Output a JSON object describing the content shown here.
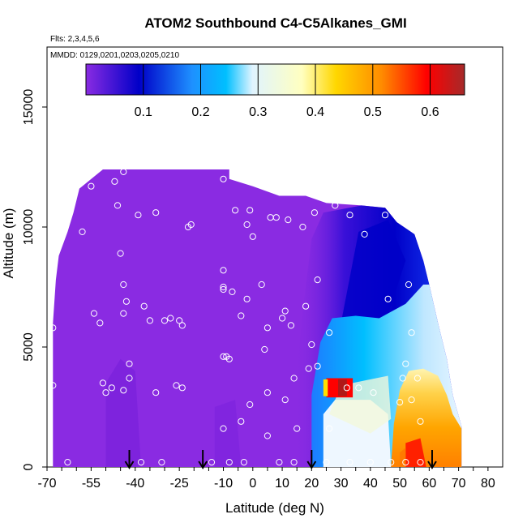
{
  "chart_data": {
    "type": "heatmap",
    "title": "ATOM2 Southbound C4-C5Alkanes_GMI",
    "annotations": [
      "Flts: 2,3,4,5,6",
      "MMDD: 0129,0201,0203,0205,0210"
    ],
    "xlabel": "Latitude (deg N)",
    "ylabel": "Altitude (m)",
    "xlim": [
      -70,
      85
    ],
    "ylim": [
      0,
      17500
    ],
    "x_ticks": [
      "-70",
      "-55",
      "-40",
      "-25",
      "-10",
      "0",
      "10",
      "20",
      "30",
      "40",
      "50",
      "60",
      "70",
      "80"
    ],
    "x_tick_values": [
      -70,
      -55,
      -40,
      -25,
      -10,
      0,
      10,
      20,
      30,
      40,
      50,
      60,
      70,
      80
    ],
    "y_ticks": [
      "0",
      "5000",
      "10000",
      "15000"
    ],
    "y_tick_values": [
      0,
      5000,
      10000,
      15000
    ],
    "colorbar": {
      "ticks": [
        "0.1",
        "0.2",
        "0.3",
        "0.4",
        "0.5",
        "0.6"
      ],
      "tick_values": [
        0.1,
        0.2,
        0.3,
        0.4,
        0.5,
        0.6
      ],
      "range": [
        0.0,
        0.66
      ],
      "colors": [
        "#8a2be2",
        "#0000c8",
        "#1e90ff",
        "#00bfff",
        "#e0f4ff",
        "#ffffc0",
        "#ffd700",
        "#ff8c00",
        "#ff0000",
        "#a52a2a"
      ]
    },
    "grid": false,
    "value_regions": [
      {
        "name": "background",
        "value": 0.02
      },
      {
        "name": "band-20N-45N-mid",
        "value": 0.25
      },
      {
        "name": "band-40N-60N-low",
        "value": 0.45
      },
      {
        "name": "hotspot-28N-3km",
        "value": 0.62
      },
      {
        "name": "hotspot-55N-surface",
        "value": 0.6
      }
    ],
    "arrow_latitudes": [
      -42,
      -17,
      20,
      61
    ],
    "observation_points": [
      {
        "x": -68,
        "y": 5800
      },
      {
        "x": -68,
        "y": 3400
      },
      {
        "x": -63,
        "y": 200
      },
      {
        "x": -58,
        "y": 9800
      },
      {
        "x": -55,
        "y": 11700
      },
      {
        "x": -54,
        "y": 6400
      },
      {
        "x": -52,
        "y": 6000
      },
      {
        "x": -51,
        "y": 3500
      },
      {
        "x": -50,
        "y": 3100
      },
      {
        "x": -48,
        "y": 3300
      },
      {
        "x": -47,
        "y": 11900
      },
      {
        "x": -46,
        "y": 10900
      },
      {
        "x": -45,
        "y": 8900
      },
      {
        "x": -44,
        "y": 12300
      },
      {
        "x": -44,
        "y": 7600
      },
      {
        "x": -44,
        "y": 6400
      },
      {
        "x": -43,
        "y": 6900
      },
      {
        "x": -42,
        "y": 4300
      },
      {
        "x": -42,
        "y": 3700
      },
      {
        "x": -44,
        "y": 3200
      },
      {
        "x": -39,
        "y": 10500
      },
      {
        "x": -37,
        "y": 6700
      },
      {
        "x": -35,
        "y": 6100
      },
      {
        "x": -33,
        "y": 3100
      },
      {
        "x": -38,
        "y": 200
      },
      {
        "x": -33,
        "y": 10600
      },
      {
        "x": -30,
        "y": 6100
      },
      {
        "x": -28,
        "y": 6200
      },
      {
        "x": -26,
        "y": 3400
      },
      {
        "x": -25,
        "y": 6100
      },
      {
        "x": -24,
        "y": 5900
      },
      {
        "x": -24,
        "y": 3300
      },
      {
        "x": -22,
        "y": 10000
      },
      {
        "x": -21,
        "y": 10100
      },
      {
        "x": -31,
        "y": 200
      },
      {
        "x": -14,
        "y": 200
      },
      {
        "x": -10,
        "y": 12000
      },
      {
        "x": -10,
        "y": 8200
      },
      {
        "x": -10,
        "y": 7500
      },
      {
        "x": -10,
        "y": 7400
      },
      {
        "x": -10,
        "y": 4600
      },
      {
        "x": -9,
        "y": 4600
      },
      {
        "x": -8,
        "y": 4500
      },
      {
        "x": -7,
        "y": 7300
      },
      {
        "x": -6,
        "y": 10700
      },
      {
        "x": -4,
        "y": 6300
      },
      {
        "x": -4,
        "y": 1900
      },
      {
        "x": -2,
        "y": 10100
      },
      {
        "x": -2,
        "y": 7000
      },
      {
        "x": -1,
        "y": 2600
      },
      {
        "x": -1,
        "y": 10700
      },
      {
        "x": 0,
        "y": 9600
      },
      {
        "x": -10,
        "y": 1600
      },
      {
        "x": -8,
        "y": 200
      },
      {
        "x": -3,
        "y": 200
      },
      {
        "x": 3,
        "y": 7600
      },
      {
        "x": 4,
        "y": 4900
      },
      {
        "x": 5,
        "y": 5800
      },
      {
        "x": 5,
        "y": 3100
      },
      {
        "x": 5,
        "y": 1300
      },
      {
        "x": 6,
        "y": 10400
      },
      {
        "x": 8,
        "y": 10400
      },
      {
        "x": 10,
        "y": 6200
      },
      {
        "x": 11,
        "y": 6500
      },
      {
        "x": 11,
        "y": 2800
      },
      {
        "x": 12,
        "y": 10300
      },
      {
        "x": 13,
        "y": 5900
      },
      {
        "x": 14,
        "y": 3700
      },
      {
        "x": 15,
        "y": 1600
      },
      {
        "x": 9,
        "y": 200
      },
      {
        "x": 14,
        "y": 200
      },
      {
        "x": 17,
        "y": 10000
      },
      {
        "x": 18,
        "y": 6700
      },
      {
        "x": 19,
        "y": 4100
      },
      {
        "x": 20,
        "y": 5100
      },
      {
        "x": 21,
        "y": 10600
      },
      {
        "x": 22,
        "y": 7800
      },
      {
        "x": 22,
        "y": 4200
      },
      {
        "x": 26,
        "y": 5600
      },
      {
        "x": 26,
        "y": 1600
      },
      {
        "x": 28,
        "y": 10900
      },
      {
        "x": 32,
        "y": 3300
      },
      {
        "x": 33,
        "y": 10500
      },
      {
        "x": 36,
        "y": 3300
      },
      {
        "x": 38,
        "y": 9700
      },
      {
        "x": 41,
        "y": 3100
      },
      {
        "x": 45,
        "y": 10500
      },
      {
        "x": 46,
        "y": 7000
      },
      {
        "x": 50,
        "y": 2700
      },
      {
        "x": 51,
        "y": 3700
      },
      {
        "x": 52,
        "y": 4300
      },
      {
        "x": 53,
        "y": 7600
      },
      {
        "x": 54,
        "y": 5600
      },
      {
        "x": 54,
        "y": 2800
      },
      {
        "x": 56,
        "y": 3700
      },
      {
        "x": 57,
        "y": 1900
      },
      {
        "x": 25,
        "y": 200
      },
      {
        "x": 33,
        "y": 200
      },
      {
        "x": 40,
        "y": 200
      },
      {
        "x": 47,
        "y": 200
      },
      {
        "x": 52,
        "y": 200
      },
      {
        "x": 57,
        "y": 200
      }
    ]
  }
}
